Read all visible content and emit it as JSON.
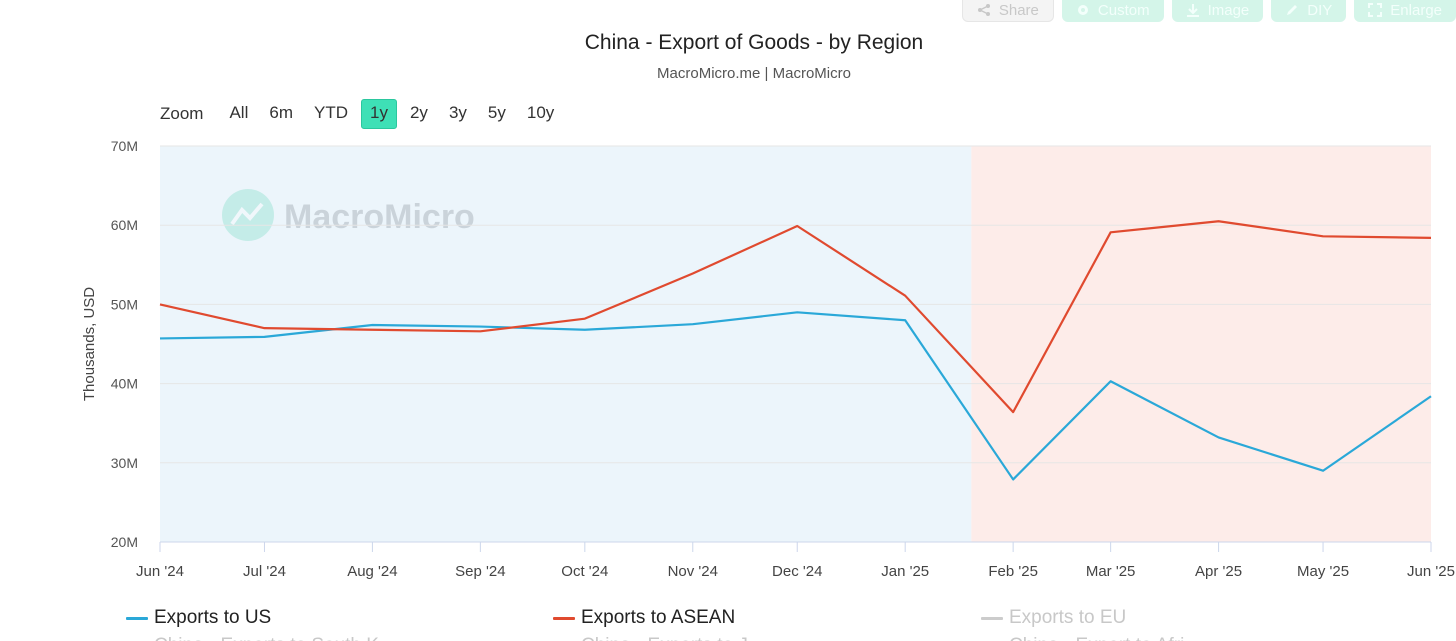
{
  "toolbar": {
    "buttons": [
      {
        "label": "Share",
        "icon": "share-icon",
        "style": "light"
      },
      {
        "label": "Custom",
        "icon": "gear-icon",
        "style": "mint"
      },
      {
        "label": "Image",
        "icon": "download-icon",
        "style": "mint"
      },
      {
        "label": "DIY",
        "icon": "pencil-icon",
        "style": "mint"
      },
      {
        "label": "Enlarge",
        "icon": "expand-icon",
        "style": "mint"
      }
    ]
  },
  "zoom": {
    "label": "Zoom",
    "options": [
      "All",
      "6m",
      "YTD",
      "1y",
      "2y",
      "3y",
      "5y",
      "10y"
    ],
    "selected": "1y"
  },
  "watermark": "MacroMicro",
  "legend": {
    "items": [
      {
        "label": "Exports to US",
        "color": "#2aa8d8",
        "visible": true
      },
      {
        "label": "Exports to ASEAN",
        "color": "#e04a2f",
        "visible": true
      },
      {
        "label": "Exports to EU",
        "color": "#cccccc",
        "visible": false
      }
    ],
    "partial_row": [
      {
        "label": "China - Exports to South K",
        "visible": false
      },
      {
        "label": "China - Exports to J",
        "visible": false
      },
      {
        "label": "China - Export to Afri",
        "visible": false
      }
    ]
  },
  "chart_data": {
    "type": "line",
    "title": "China - Export of Goods - by Region",
    "subtitle": "MacroMicro.me | MacroMicro",
    "ylabel": "Thousands, USD",
    "ylim": [
      20000000,
      70000000
    ],
    "yticks": [
      {
        "value": 20000000,
        "label": "20M"
      },
      {
        "value": 30000000,
        "label": "30M"
      },
      {
        "value": 40000000,
        "label": "40M"
      },
      {
        "value": 50000000,
        "label": "50M"
      },
      {
        "value": 60000000,
        "label": "60M"
      },
      {
        "value": 70000000,
        "label": "70M"
      }
    ],
    "x": [
      "2024-06-01",
      "2024-07-01",
      "2024-08-01",
      "2024-09-01",
      "2024-10-01",
      "2024-11-01",
      "2024-12-01",
      "2025-01-01",
      "2025-02-01",
      "2025-03-01",
      "2025-04-01",
      "2025-05-01",
      "2025-06-01"
    ],
    "xticks": [
      "Jun '24",
      "Jul '24",
      "Aug '24",
      "Sep '24",
      "Oct '24",
      "Nov '24",
      "Dec '24",
      "Jan '25",
      "Feb '25",
      "Mar '25",
      "Apr '25",
      "May '25",
      "Jun '25"
    ],
    "series": [
      {
        "name": "Exports to US",
        "color": "#2aa8d8",
        "values": [
          45700000,
          45900000,
          47400000,
          47200000,
          46800000,
          47500000,
          49000000,
          48000000,
          27900000,
          40300000,
          33200000,
          29000000,
          38400000
        ]
      },
      {
        "name": "Exports to ASEAN",
        "color": "#e04a2f",
        "values": [
          50000000,
          47000000,
          46800000,
          46600000,
          48200000,
          53900000,
          59900000,
          51100000,
          36400000,
          59100000,
          60500000,
          58600000,
          58400000
        ]
      }
    ],
    "bands": [
      {
        "from": "2024-06-01",
        "to": "2025-01-20",
        "color": "#ecf5fb"
      },
      {
        "from": "2025-01-20",
        "to": "2025-06-01",
        "color": "#fdece9"
      }
    ],
    "grid": true
  }
}
